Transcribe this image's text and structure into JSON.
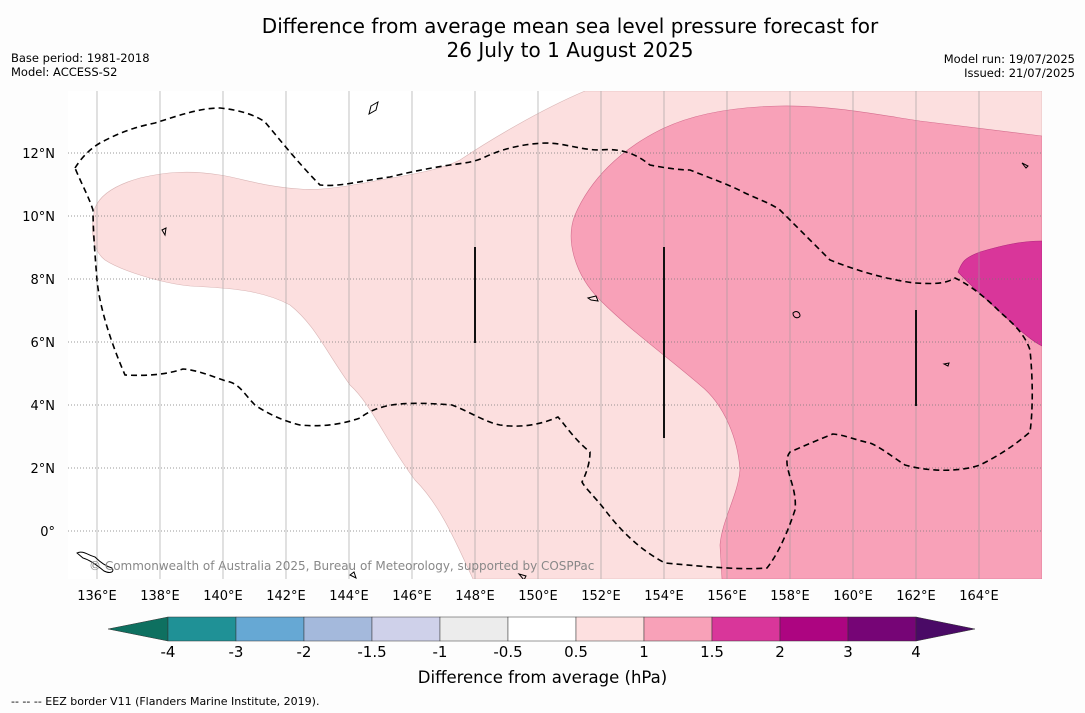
{
  "title_line1": "Difference from average mean sea level pressure forecast for",
  "title_line2": "26 July to 1 August 2025",
  "meta_left": {
    "base_period": "Base period: 1981-2018",
    "model": "Model: ACCESS-S2"
  },
  "meta_right": {
    "model_run": "Model run: 19/07/2025",
    "issued": "Issued: 21/07/2025"
  },
  "map": {
    "lat_labels": [
      "12°N",
      "10°N",
      "8°N",
      "6°N",
      "4°N",
      "2°N",
      "0°"
    ],
    "lat_values": [
      12,
      10,
      8,
      6,
      4,
      2,
      0
    ],
    "lon_labels": [
      "136°E",
      "138°E",
      "140°E",
      "142°E",
      "144°E",
      "146°E",
      "148°E",
      "150°E",
      "152°E",
      "154°E",
      "156°E",
      "158°E",
      "160°E",
      "162°E",
      "164°E"
    ],
    "lon_values": [
      136,
      138,
      140,
      142,
      144,
      146,
      148,
      150,
      152,
      154,
      156,
      158,
      160,
      162,
      164
    ],
    "copyright": "© Commonwealth of Australia 2025, Bureau of Meteorology, supported by COSPPac",
    "shading_levels": {
      "0.5 to 1": "light pink",
      "1 to 1.5": "medium pink",
      "1.5 to 2": "magenta"
    },
    "shading_colors": {
      "0.5 to 1": "#fcdfdf",
      "1 to 1.5": "#f8a1b8",
      "1.5 to 2": "#d9369a"
    }
  },
  "colorbar": {
    "tick_labels": [
      "-4",
      "-3",
      "-2",
      "-1.5",
      "-1",
      "-0.5",
      "0.5",
      "1",
      "1.5",
      "2",
      "3",
      "4"
    ],
    "colors": [
      "#1f9196",
      "#66a8d4",
      "#a4b9dc",
      "#cfd1ea",
      "#ececec",
      "#ffffff",
      "#fde0e0",
      "#f8a1b8",
      "#d9369a",
      "#ad0581",
      "#760576"
    ],
    "under_color": "#0e7060",
    "over_color": "#4a0a66",
    "title": "Difference from average (hPa)"
  },
  "footnote": "-- -- -- EEZ border V11 (Flanders Marine Institute, 2019)."
}
